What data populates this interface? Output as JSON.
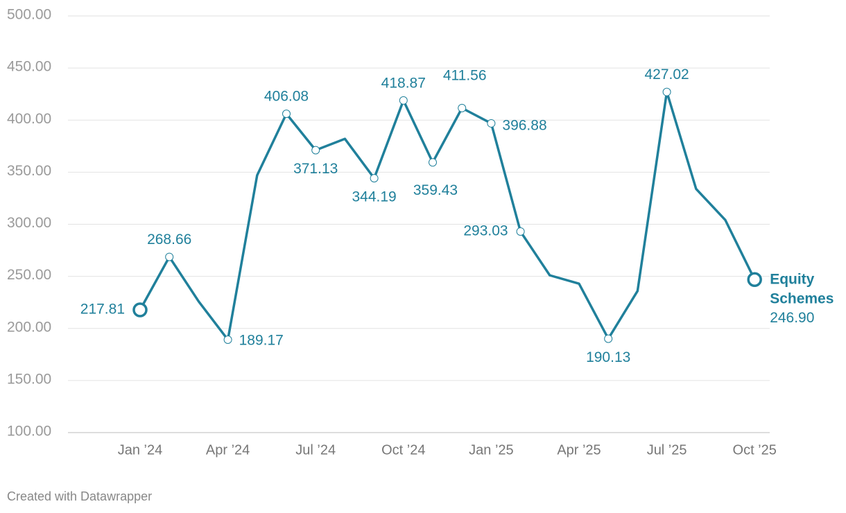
{
  "chart_data": {
    "type": "line",
    "categories": [
      "Jan ’24",
      null,
      null,
      "Apr ’24",
      null,
      null,
      "Jul ’24",
      null,
      null,
      "Oct ’24",
      null,
      null,
      "Jan ’25",
      null,
      null,
      "Apr ’25",
      null,
      null,
      "Jul ’25",
      null,
      null,
      "Oct ’25"
    ],
    "series": [
      {
        "name": "Equity Schemes",
        "color": "#20809b",
        "values": [
          217.81,
          268.66,
          226,
          189.17,
          347,
          406.08,
          371.13,
          382,
          344.19,
          418.87,
          359.43,
          411.56,
          396.88,
          293.03,
          251,
          243,
          190.13,
          236,
          427.02,
          334,
          304,
          246.9
        ],
        "value_labels": [
          "217.81",
          "268.66",
          null,
          "189.17",
          null,
          "406.08",
          "371.13",
          null,
          "344.19",
          "418.87",
          "359.43",
          "411.56",
          "396.88",
          "293.03",
          null,
          null,
          "190.13",
          null,
          "427.02",
          null,
          null,
          "246.90"
        ]
      }
    ],
    "ylim": [
      100,
      500
    ],
    "yticks": [
      {
        "value": 100,
        "label": "100.00"
      },
      {
        "value": 150,
        "label": "150.00"
      },
      {
        "value": 200,
        "label": "200.00"
      },
      {
        "value": 250,
        "label": "250.00"
      },
      {
        "value": 300,
        "label": "300.00"
      },
      {
        "value": 350,
        "label": "350.00"
      },
      {
        "value": 400,
        "label": "400.00"
      },
      {
        "value": 450,
        "label": "450.00"
      },
      {
        "value": 500,
        "label": "500.00"
      }
    ],
    "grid": true,
    "credit": "Created with Datawrapper"
  }
}
